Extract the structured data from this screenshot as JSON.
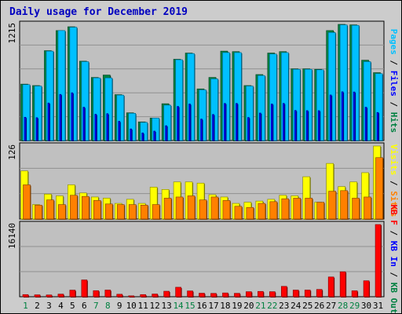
{
  "title": "Daily usage for December 2019",
  "chart_data": [
    {
      "type": "bar",
      "panel": "hits-files-pages",
      "ytick": "1215",
      "ylim": [
        0,
        1215
      ],
      "legend": [
        {
          "text": "Pages",
          "color": "#00c0ff"
        },
        {
          "text": "Files",
          "color": "#0000ff"
        },
        {
          "text": "Hits",
          "color": "#008040"
        }
      ],
      "categories": [
        "1",
        "2",
        "3",
        "4",
        "5",
        "6",
        "7",
        "8",
        "9",
        "10",
        "11",
        "12",
        "13",
        "14",
        "15",
        "16",
        "17",
        "18",
        "19",
        "20",
        "21",
        "22",
        "23",
        "24",
        "25",
        "26",
        "27",
        "28",
        "29",
        "30",
        "31"
      ],
      "series": [
        {
          "name": "Hits",
          "values": [
            590,
            575,
            940,
            1150,
            1190,
            830,
            660,
            685,
            480,
            290,
            195,
            235,
            385,
            850,
            915,
            540,
            660,
            935,
            930,
            575,
            690,
            915,
            930,
            750,
            750,
            745,
            1150,
            1215,
            1210,
            840,
            710
          ]
        },
        {
          "name": "Files",
          "values": [
            580,
            570,
            935,
            1150,
            1190,
            830,
            655,
            670,
            480,
            290,
            190,
            235,
            370,
            850,
            910,
            535,
            650,
            925,
            925,
            575,
            685,
            910,
            925,
            750,
            745,
            745,
            1135,
            1215,
            1210,
            830,
            700
          ]
        },
        {
          "name": "Pages",
          "values": [
            585,
            570,
            935,
            1150,
            1185,
            825,
            655,
            655,
            475,
            285,
            190,
            235,
            370,
            845,
            910,
            530,
            645,
            920,
            920,
            570,
            680,
            905,
            920,
            745,
            745,
            740,
            1130,
            1210,
            1205,
            825,
            700
          ]
        }
      ]
    },
    {
      "type": "bar",
      "panel": "visits-sites",
      "ytick": "126",
      "ylim": [
        0,
        126
      ],
      "legend": [
        {
          "text": "Visits",
          "color": "#ffff00"
        },
        {
          "text": "Sites",
          "color": "#ff8000"
        }
      ],
      "categories": [
        "1",
        "2",
        "3",
        "4",
        "5",
        "6",
        "7",
        "8",
        "9",
        "10",
        "11",
        "12",
        "13",
        "14",
        "15",
        "16",
        "17",
        "18",
        "19",
        "20",
        "21",
        "22",
        "23",
        "24",
        "25",
        "26",
        "27",
        "28",
        "29",
        "30",
        "31"
      ],
      "series": [
        {
          "name": "Visits",
          "values": [
            83,
            25,
            43,
            40,
            59,
            45,
            38,
            36,
            27,
            34,
            27,
            55,
            51,
            64,
            64,
            62,
            42,
            38,
            27,
            29,
            31,
            34,
            41,
            40,
            73,
            29,
            96,
            56,
            64,
            80,
            126
          ]
        },
        {
          "name": "Sites",
          "values": [
            59,
            24,
            33,
            25,
            41,
            39,
            32,
            26,
            25,
            25,
            24,
            25,
            36,
            38,
            40,
            33,
            38,
            32,
            22,
            20,
            27,
            30,
            35,
            36,
            36,
            29,
            48,
            49,
            36,
            38,
            106
          ]
        }
      ]
    },
    {
      "type": "bar",
      "panel": "kbytes",
      "ytick": "16140",
      "ylim": [
        0,
        16140
      ],
      "legend": [
        {
          "text": "KB F",
          "color": "#ff0000"
        },
        {
          "text": "KB In",
          "color": "#0000ff"
        },
        {
          "text": "KB Out",
          "color": "#008040"
        }
      ],
      "categories": [
        "1",
        "2",
        "3",
        "4",
        "5",
        "6",
        "7",
        "8",
        "9",
        "10",
        "11",
        "12",
        "13",
        "14",
        "15",
        "16",
        "17",
        "18",
        "19",
        "20",
        "21",
        "22",
        "23",
        "24",
        "25",
        "26",
        "27",
        "28",
        "29",
        "30",
        "31"
      ],
      "series": [
        {
          "name": "KB F",
          "values": [
            480,
            430,
            400,
            590,
            1480,
            3760,
            1360,
            1500,
            560,
            210,
            480,
            610,
            1230,
            2120,
            1300,
            790,
            750,
            850,
            770,
            1130,
            1190,
            1130,
            2320,
            1490,
            1500,
            1630,
            4420,
            5580,
            1330,
            3570,
            16140
          ]
        }
      ]
    }
  ],
  "day_labels": [
    {
      "text": "1",
      "color": "#008040"
    },
    {
      "text": "2",
      "color": "#000000"
    },
    {
      "text": "3",
      "color": "#000000"
    },
    {
      "text": "4",
      "color": "#000000"
    },
    {
      "text": "5",
      "color": "#000000"
    },
    {
      "text": "6",
      "color": "#000000"
    },
    {
      "text": "7",
      "color": "#008040"
    },
    {
      "text": "8",
      "color": "#008040"
    },
    {
      "text": "9",
      "color": "#000000"
    },
    {
      "text": "10",
      "color": "#000000"
    },
    {
      "text": "11",
      "color": "#000000"
    },
    {
      "text": "12",
      "color": "#000000"
    },
    {
      "text": "13",
      "color": "#000000"
    },
    {
      "text": "14",
      "color": "#008040"
    },
    {
      "text": "15",
      "color": "#008040"
    },
    {
      "text": "16",
      "color": "#000000"
    },
    {
      "text": "17",
      "color": "#000000"
    },
    {
      "text": "18",
      "color": "#000000"
    },
    {
      "text": "19",
      "color": "#000000"
    },
    {
      "text": "20",
      "color": "#000000"
    },
    {
      "text": "21",
      "color": "#008040"
    },
    {
      "text": "22",
      "color": "#008040"
    },
    {
      "text": "23",
      "color": "#000000"
    },
    {
      "text": "24",
      "color": "#000000"
    },
    {
      "text": "25",
      "color": "#000000"
    },
    {
      "text": "26",
      "color": "#000000"
    },
    {
      "text": "27",
      "color": "#000000"
    },
    {
      "text": "28",
      "color": "#008040"
    },
    {
      "text": "29",
      "color": "#008040"
    },
    {
      "text": "30",
      "color": "#000000"
    },
    {
      "text": "31",
      "color": "#000000"
    }
  ],
  "colors": {
    "background": "#cccccc",
    "plot_area": "#c0c0c0",
    "title": "#0000c0",
    "hits": "#008040",
    "files": "#0000ff",
    "pages": "#00c0ff",
    "visits": "#ffff00",
    "sites": "#ff8000",
    "kbytes": "#ff0000"
  }
}
